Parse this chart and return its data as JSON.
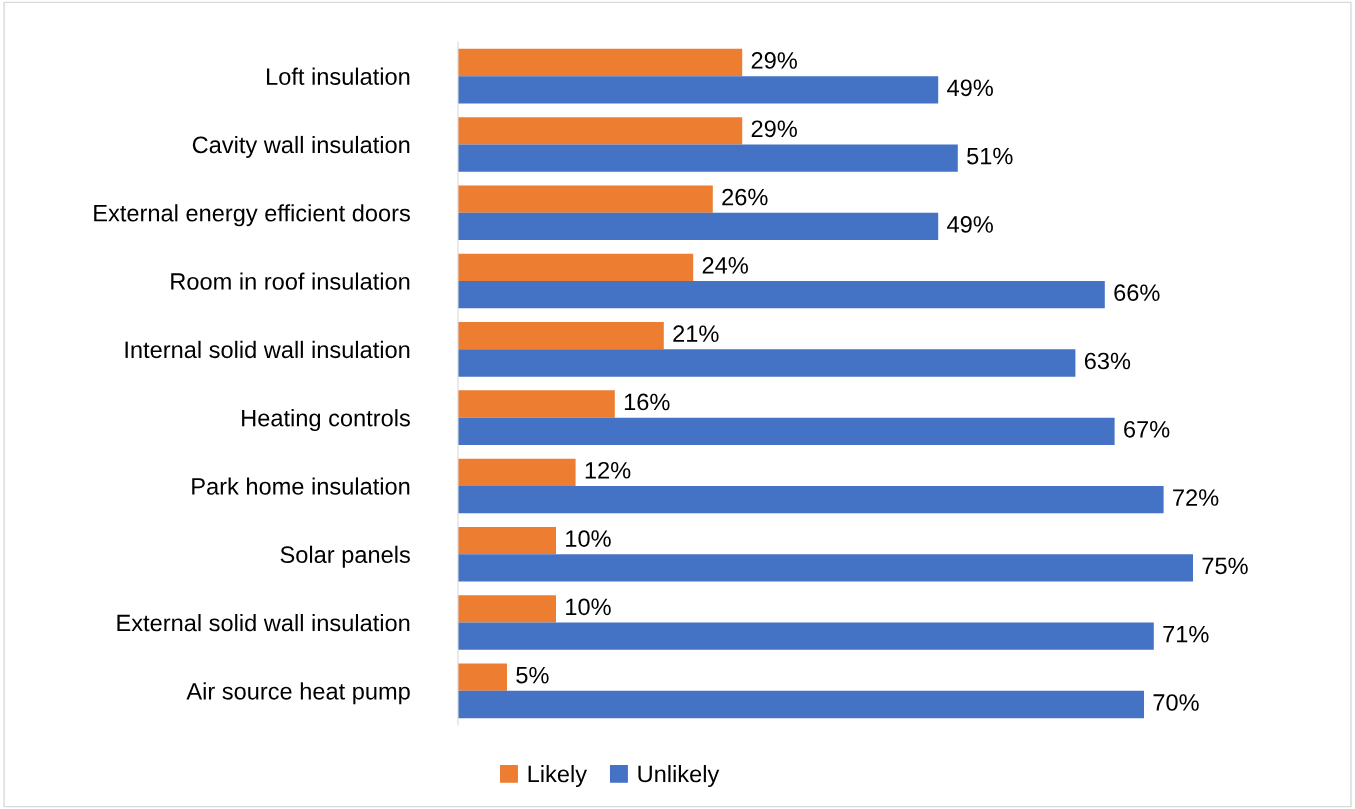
{
  "chart_data": {
    "type": "bar",
    "orientation": "horizontal",
    "categories": [
      "Loft insulation",
      "Cavity wall insulation",
      "External energy efficient doors",
      "Room in roof insulation",
      "Internal solid wall insulation",
      "Heating controls",
      "Park home insulation",
      "Solar panels",
      "External solid wall insulation",
      "Air source heat pump"
    ],
    "series": [
      {
        "name": "Likely",
        "color": "#ed7d31",
        "values": [
          29,
          29,
          26,
          24,
          21,
          16,
          12,
          10,
          10,
          5
        ],
        "value_labels": [
          "29%",
          "29%",
          "26%",
          "24%",
          "21%",
          "16%",
          "12%",
          "10%",
          "10%",
          "5%"
        ]
      },
      {
        "name": "Unlikely",
        "color": "#4472c4",
        "values": [
          49,
          51,
          49,
          66,
          63,
          67,
          72,
          75,
          71,
          70
        ],
        "value_labels": [
          "49%",
          "51%",
          "49%",
          "66%",
          "63%",
          "67%",
          "72%",
          "75%",
          "71%",
          "70%"
        ]
      }
    ],
    "legend": "bottom",
    "grid": false,
    "tick_labels": "y"
  }
}
